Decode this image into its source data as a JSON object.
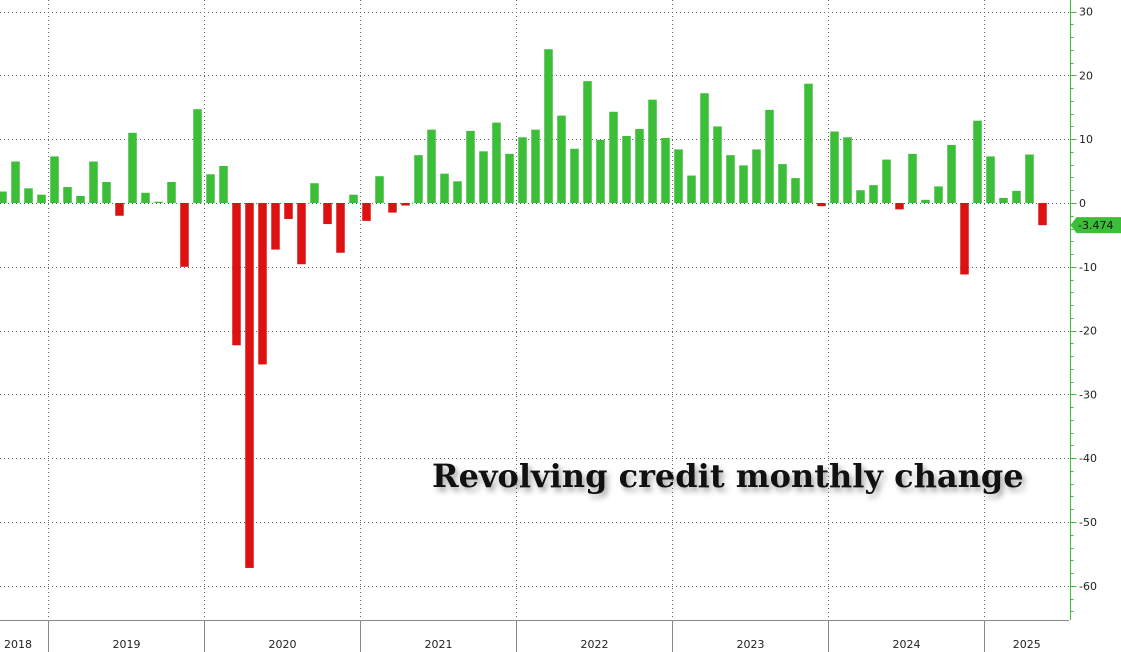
{
  "chart_data": {
    "type": "bar",
    "title": "Revolving credit monthly change",
    "xlabel": "",
    "ylabel": "",
    "x_axis_years": [
      "2018",
      "2019",
      "2020",
      "2021",
      "2022",
      "2023",
      "2024",
      "2025"
    ],
    "y_ticks": [
      30,
      20,
      10,
      0,
      -10,
      -20,
      -30,
      -40,
      -50,
      -60
    ],
    "ylim": [
      -65,
      31
    ],
    "grid": true,
    "y_axis_side": "right",
    "last_value_label": "-3.474",
    "colors": {
      "positive": "#3cbe38",
      "negative": "#dd1111",
      "axis": "#3cbe38",
      "grid": "#666666",
      "last_value_bg": "#3cbe38"
    },
    "series": [
      {
        "start": "2018-09",
        "values": [
          1.8,
          6.5,
          2.3,
          1.3,
          7.3,
          2.5,
          1.1,
          6.5,
          3.3,
          -2.0,
          11.0,
          1.6,
          0.2,
          3.3,
          -10.0,
          14.7,
          4.5,
          5.8,
          -22.3,
          -57.2,
          -25.3,
          -7.3,
          -2.5,
          -9.6,
          3.1,
          -3.3,
          -7.8,
          1.3,
          -2.8,
          4.2,
          -1.5,
          -0.4,
          7.5,
          11.5,
          4.6,
          3.4,
          11.3,
          8.1,
          12.6,
          7.7,
          10.3,
          11.5,
          24.1,
          13.7,
          8.5,
          19.1,
          9.9,
          14.3,
          10.5,
          11.6,
          16.2,
          10.2,
          8.4,
          4.3,
          17.2,
          12.0,
          7.5,
          5.9,
          8.4,
          14.6,
          6.1,
          3.9,
          18.7,
          -0.5,
          11.2,
          10.3,
          2.0,
          2.8,
          6.8,
          -1.0,
          7.7,
          0.5,
          2.6,
          9.1,
          -11.2,
          12.9,
          7.3,
          0.8,
          1.9,
          7.6,
          -3.474
        ]
      }
    ]
  }
}
